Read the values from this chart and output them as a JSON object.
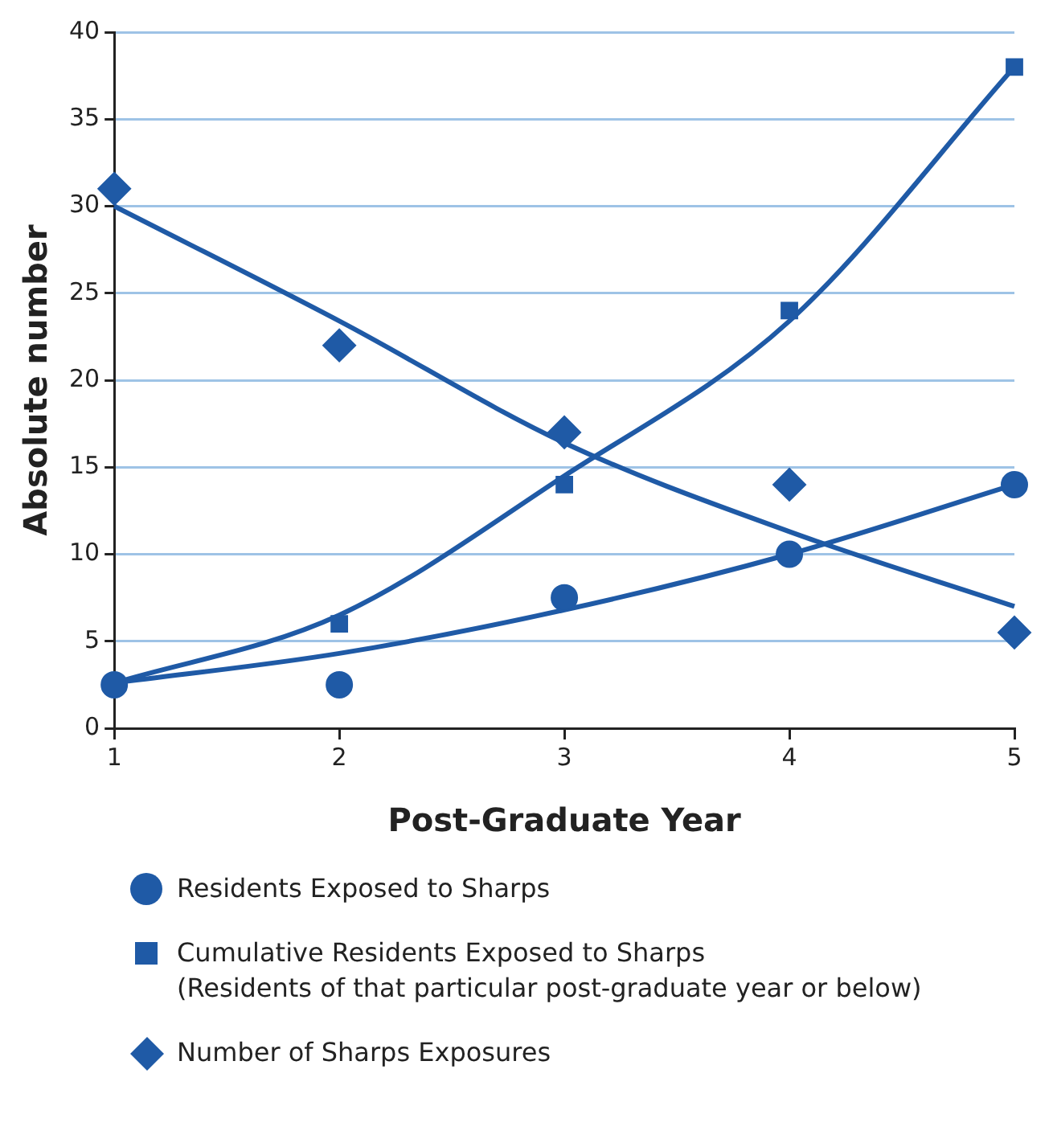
{
  "chart_data": {
    "type": "scatter",
    "xlabel": "Post-Graduate Year",
    "ylabel": "Absolute number",
    "x": [
      1,
      2,
      3,
      4,
      5
    ],
    "xlim": [
      1,
      5
    ],
    "xticks": [
      1,
      2,
      3,
      4,
      5
    ],
    "ylim": [
      0,
      40
    ],
    "yticks": [
      0,
      5,
      10,
      15,
      20,
      25,
      30,
      35,
      40
    ],
    "grid": "y",
    "legend": "bottom",
    "series": [
      {
        "type": "line",
        "color": "#1f5aa6",
        "marker": "none",
        "values": [
          2.6,
          4.3,
          6.8,
          10,
          14
        ]
      },
      {
        "type": "line",
        "color": "#1f5aa6",
        "marker": "none",
        "values": [
          2.6,
          6.5,
          14.5,
          23.4,
          38
        ]
      },
      {
        "type": "line",
        "color": "#1f5aa6",
        "marker": "none",
        "values": [
          30,
          23.4,
          16.4,
          11.3,
          7
        ]
      },
      {
        "name": "Residents Exposed to Sharps",
        "type": "scatter",
        "color": "#1f5aa6",
        "marker": "circle",
        "values": [
          2.5,
          2.5,
          7.5,
          10,
          14
        ]
      },
      {
        "name": "Cumulative Residents Exposed to Sharps\n(Residents of that particular post-graduate year or below)",
        "type": "scatter",
        "color": "#1f5aa6",
        "marker": "square",
        "values": [
          null,
          6,
          14,
          24,
          38
        ]
      },
      {
        "name": "Number of Sharps Exposures",
        "type": "scatter",
        "color": "#1f5aa6",
        "marker": "diamond",
        "values": [
          31,
          22,
          17,
          14,
          5.5
        ]
      }
    ]
  }
}
